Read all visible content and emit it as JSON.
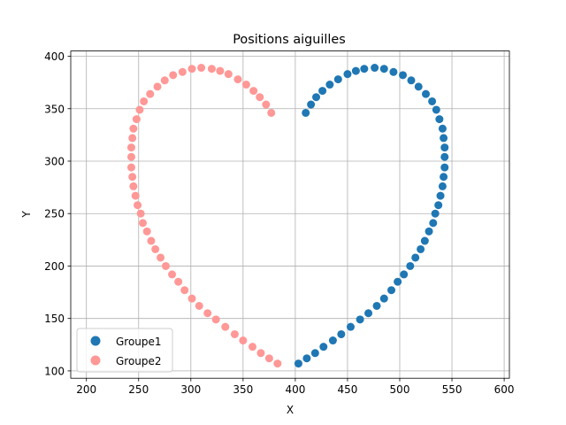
{
  "chart_data": {
    "type": "scatter",
    "title": "Positions aiguilles",
    "xlabel": "X",
    "ylabel": "Y",
    "xlim": [
      185,
      605
    ],
    "ylim": [
      93,
      405
    ],
    "xticks": [
      200,
      250,
      300,
      350,
      400,
      450,
      500,
      550,
      600
    ],
    "yticks": [
      100,
      150,
      200,
      250,
      300,
      350,
      400
    ],
    "grid": true,
    "legend_position": "lower-left",
    "series": [
      {
        "name": "Groupe1",
        "color": "#1f77b4",
        "points": [
          [
            410,
            346
          ],
          [
            415,
            354
          ],
          [
            420,
            361
          ],
          [
            426,
            367
          ],
          [
            433,
            373
          ],
          [
            441,
            378
          ],
          [
            450,
            383
          ],
          [
            458,
            386
          ],
          [
            466,
            388
          ],
          [
            476,
            389
          ],
          [
            485,
            388
          ],
          [
            494,
            385
          ],
          [
            503,
            382
          ],
          [
            511,
            377
          ],
          [
            518,
            371
          ],
          [
            525,
            364
          ],
          [
            531,
            357
          ],
          [
            535,
            349
          ],
          [
            538,
            340
          ],
          [
            541,
            331
          ],
          [
            542,
            322
          ],
          [
            543,
            313
          ],
          [
            543,
            304
          ],
          [
            543,
            294
          ],
          [
            542,
            285
          ],
          [
            541,
            276
          ],
          [
            539,
            267
          ],
          [
            537,
            258
          ],
          [
            534,
            250
          ],
          [
            532,
            241
          ],
          [
            528,
            233
          ],
          [
            524,
            224
          ],
          [
            520,
            216
          ],
          [
            515,
            208
          ],
          [
            510,
            200
          ],
          [
            504,
            192
          ],
          [
            498,
            185
          ],
          [
            492,
            177
          ],
          [
            485,
            169
          ],
          [
            478,
            162
          ],
          [
            470,
            155
          ],
          [
            462,
            149
          ],
          [
            453,
            142
          ],
          [
            444,
            135
          ],
          [
            436,
            129
          ],
          [
            427,
            123
          ],
          [
            419,
            117
          ],
          [
            411,
            112
          ],
          [
            403,
            107
          ]
        ]
      },
      {
        "name": "Groupe2",
        "color": "#ff9896",
        "points": [
          [
            377,
            346
          ],
          [
            372,
            354
          ],
          [
            366,
            361
          ],
          [
            360,
            367
          ],
          [
            353,
            373
          ],
          [
            345,
            378
          ],
          [
            336,
            383
          ],
          [
            328,
            386
          ],
          [
            320,
            388
          ],
          [
            310,
            389
          ],
          [
            301,
            388
          ],
          [
            292,
            385
          ],
          [
            283,
            382
          ],
          [
            275,
            377
          ],
          [
            268,
            371
          ],
          [
            261,
            364
          ],
          [
            255,
            357
          ],
          [
            251,
            349
          ],
          [
            248,
            340
          ],
          [
            245,
            331
          ],
          [
            244,
            322
          ],
          [
            243,
            313
          ],
          [
            243,
            304
          ],
          [
            243,
            294
          ],
          [
            244,
            285
          ],
          [
            245,
            276
          ],
          [
            247,
            267
          ],
          [
            249,
            258
          ],
          [
            252,
            250
          ],
          [
            254,
            241
          ],
          [
            258,
            233
          ],
          [
            262,
            224
          ],
          [
            266,
            216
          ],
          [
            271,
            208
          ],
          [
            276,
            200
          ],
          [
            282,
            192
          ],
          [
            288,
            185
          ],
          [
            294,
            177
          ],
          [
            301,
            169
          ],
          [
            308,
            162
          ],
          [
            316,
            155
          ],
          [
            324,
            149
          ],
          [
            333,
            142
          ],
          [
            342,
            135
          ],
          [
            350,
            129
          ],
          [
            359,
            123
          ],
          [
            367,
            117
          ],
          [
            375,
            112
          ],
          [
            383,
            107
          ]
        ]
      }
    ]
  }
}
